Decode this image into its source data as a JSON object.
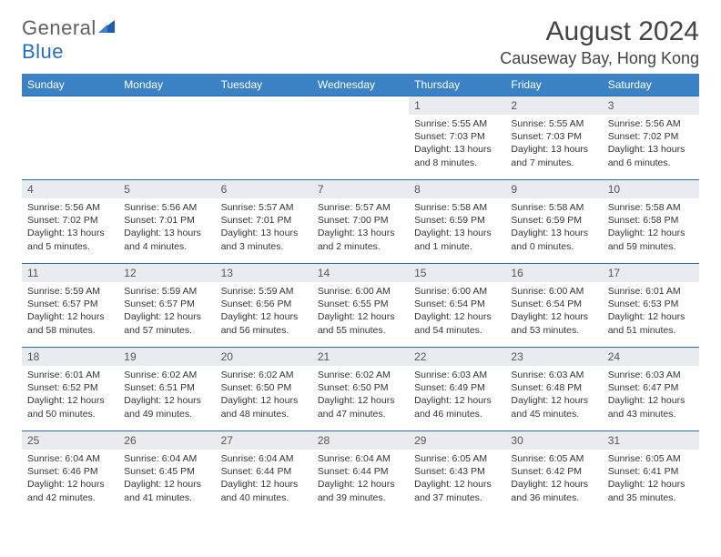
{
  "brand": {
    "part1": "General",
    "part2": "Blue"
  },
  "header": {
    "month_title": "August 2024",
    "location": "Causeway Bay, Hong Kong"
  },
  "colors": {
    "header_bg": "#3b82c4",
    "row_border": "#2f6ca8",
    "daynum_bg": "#e8ecef"
  },
  "weekdays": [
    "Sunday",
    "Monday",
    "Tuesday",
    "Wednesday",
    "Thursday",
    "Friday",
    "Saturday"
  ],
  "weeks": [
    [
      {
        "day": null
      },
      {
        "day": null
      },
      {
        "day": null
      },
      {
        "day": null
      },
      {
        "day": 1,
        "sunrise": "5:55 AM",
        "sunset": "7:03 PM",
        "daylight": "13 hours and 8 minutes."
      },
      {
        "day": 2,
        "sunrise": "5:55 AM",
        "sunset": "7:03 PM",
        "daylight": "13 hours and 7 minutes."
      },
      {
        "day": 3,
        "sunrise": "5:56 AM",
        "sunset": "7:02 PM",
        "daylight": "13 hours and 6 minutes."
      }
    ],
    [
      {
        "day": 4,
        "sunrise": "5:56 AM",
        "sunset": "7:02 PM",
        "daylight": "13 hours and 5 minutes."
      },
      {
        "day": 5,
        "sunrise": "5:56 AM",
        "sunset": "7:01 PM",
        "daylight": "13 hours and 4 minutes."
      },
      {
        "day": 6,
        "sunrise": "5:57 AM",
        "sunset": "7:01 PM",
        "daylight": "13 hours and 3 minutes."
      },
      {
        "day": 7,
        "sunrise": "5:57 AM",
        "sunset": "7:00 PM",
        "daylight": "13 hours and 2 minutes."
      },
      {
        "day": 8,
        "sunrise": "5:58 AM",
        "sunset": "6:59 PM",
        "daylight": "13 hours and 1 minute."
      },
      {
        "day": 9,
        "sunrise": "5:58 AM",
        "sunset": "6:59 PM",
        "daylight": "13 hours and 0 minutes."
      },
      {
        "day": 10,
        "sunrise": "5:58 AM",
        "sunset": "6:58 PM",
        "daylight": "12 hours and 59 minutes."
      }
    ],
    [
      {
        "day": 11,
        "sunrise": "5:59 AM",
        "sunset": "6:57 PM",
        "daylight": "12 hours and 58 minutes."
      },
      {
        "day": 12,
        "sunrise": "5:59 AM",
        "sunset": "6:57 PM",
        "daylight": "12 hours and 57 minutes."
      },
      {
        "day": 13,
        "sunrise": "5:59 AM",
        "sunset": "6:56 PM",
        "daylight": "12 hours and 56 minutes."
      },
      {
        "day": 14,
        "sunrise": "6:00 AM",
        "sunset": "6:55 PM",
        "daylight": "12 hours and 55 minutes."
      },
      {
        "day": 15,
        "sunrise": "6:00 AM",
        "sunset": "6:54 PM",
        "daylight": "12 hours and 54 minutes."
      },
      {
        "day": 16,
        "sunrise": "6:00 AM",
        "sunset": "6:54 PM",
        "daylight": "12 hours and 53 minutes."
      },
      {
        "day": 17,
        "sunrise": "6:01 AM",
        "sunset": "6:53 PM",
        "daylight": "12 hours and 51 minutes."
      }
    ],
    [
      {
        "day": 18,
        "sunrise": "6:01 AM",
        "sunset": "6:52 PM",
        "daylight": "12 hours and 50 minutes."
      },
      {
        "day": 19,
        "sunrise": "6:02 AM",
        "sunset": "6:51 PM",
        "daylight": "12 hours and 49 minutes."
      },
      {
        "day": 20,
        "sunrise": "6:02 AM",
        "sunset": "6:50 PM",
        "daylight": "12 hours and 48 minutes."
      },
      {
        "day": 21,
        "sunrise": "6:02 AM",
        "sunset": "6:50 PM",
        "daylight": "12 hours and 47 minutes."
      },
      {
        "day": 22,
        "sunrise": "6:03 AM",
        "sunset": "6:49 PM",
        "daylight": "12 hours and 46 minutes."
      },
      {
        "day": 23,
        "sunrise": "6:03 AM",
        "sunset": "6:48 PM",
        "daylight": "12 hours and 45 minutes."
      },
      {
        "day": 24,
        "sunrise": "6:03 AM",
        "sunset": "6:47 PM",
        "daylight": "12 hours and 43 minutes."
      }
    ],
    [
      {
        "day": 25,
        "sunrise": "6:04 AM",
        "sunset": "6:46 PM",
        "daylight": "12 hours and 42 minutes."
      },
      {
        "day": 26,
        "sunrise": "6:04 AM",
        "sunset": "6:45 PM",
        "daylight": "12 hours and 41 minutes."
      },
      {
        "day": 27,
        "sunrise": "6:04 AM",
        "sunset": "6:44 PM",
        "daylight": "12 hours and 40 minutes."
      },
      {
        "day": 28,
        "sunrise": "6:04 AM",
        "sunset": "6:44 PM",
        "daylight": "12 hours and 39 minutes."
      },
      {
        "day": 29,
        "sunrise": "6:05 AM",
        "sunset": "6:43 PM",
        "daylight": "12 hours and 37 minutes."
      },
      {
        "day": 30,
        "sunrise": "6:05 AM",
        "sunset": "6:42 PM",
        "daylight": "12 hours and 36 minutes."
      },
      {
        "day": 31,
        "sunrise": "6:05 AM",
        "sunset": "6:41 PM",
        "daylight": "12 hours and 35 minutes."
      }
    ]
  ],
  "labels": {
    "sunrise": "Sunrise:",
    "sunset": "Sunset:",
    "daylight": "Daylight:"
  }
}
